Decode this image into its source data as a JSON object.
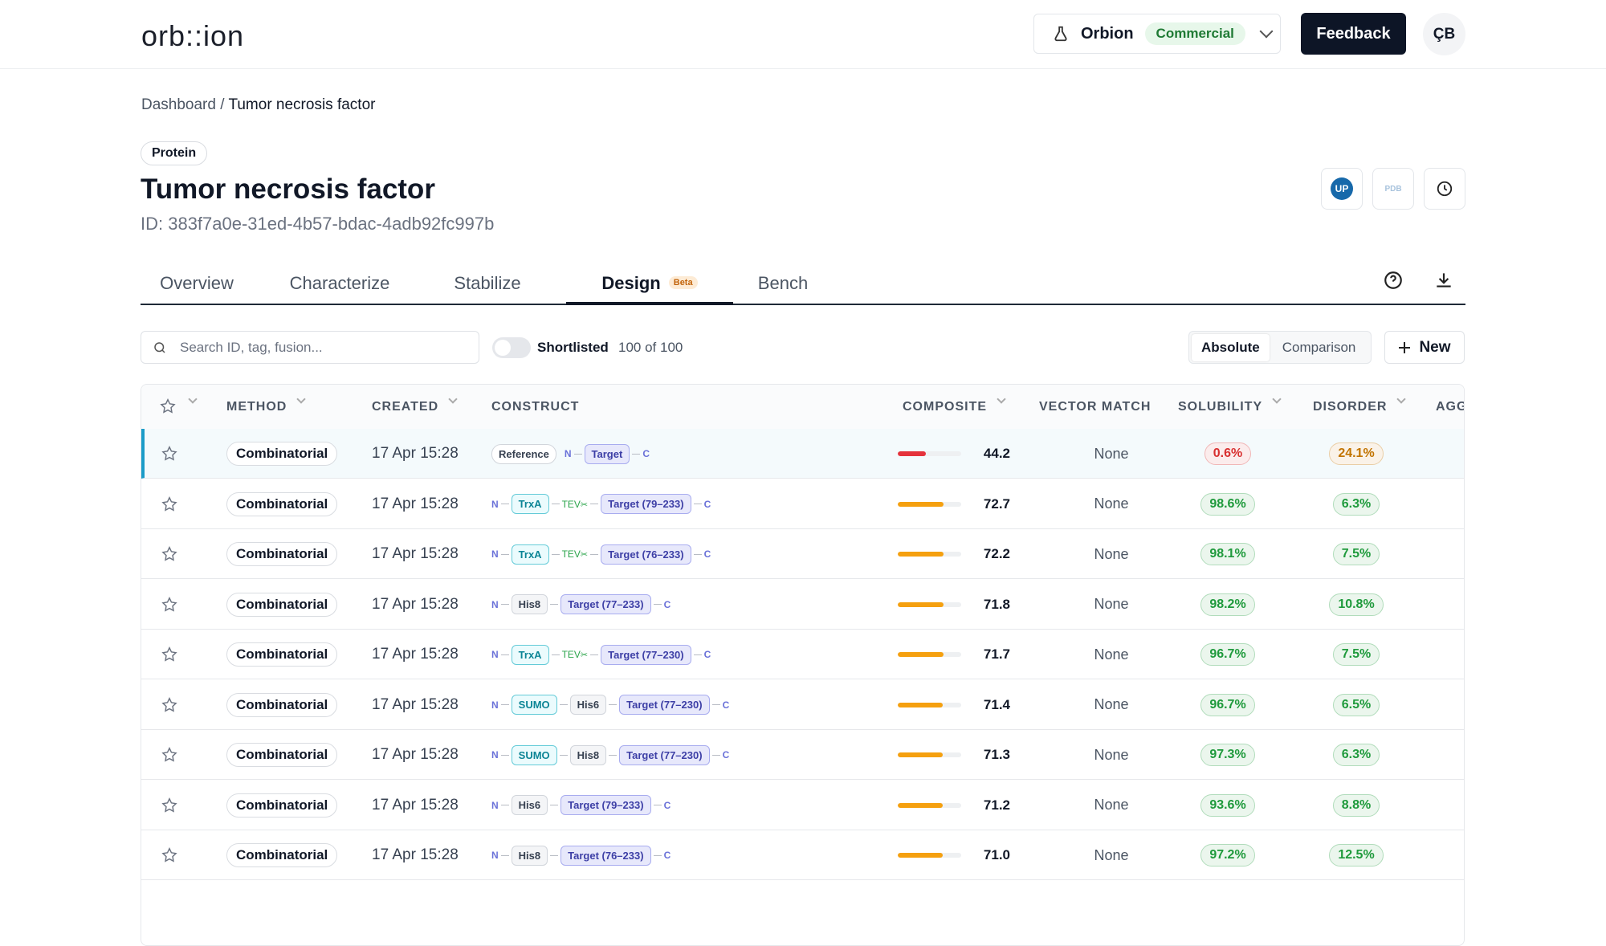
{
  "header": {
    "logo": "orb::ion",
    "workspace": "Orbion",
    "plan": "Commercial",
    "feedback": "Feedback",
    "avatar": "ÇB"
  },
  "breadcrumb": {
    "parent": "Dashboard",
    "separator": "/",
    "current": "Tumor necrosis factor"
  },
  "entity": {
    "badge": "Protein",
    "title": "Tumor necrosis factor",
    "id": "ID: 383f7a0e-31ed-4b57-bdac-4adb92fc997b",
    "uniprot_icon": "UP",
    "pdb_icon": "PDB"
  },
  "tabs": {
    "items": [
      "Overview",
      "Characterize",
      "Stabilize",
      "Design",
      "Bench"
    ],
    "active": 3,
    "badge": "Beta",
    "badge_tab": 3
  },
  "toolbar": {
    "search_placeholder": "Search ID, tag, fusion...",
    "toggle_label": "Shortlisted",
    "count": "100 of 100",
    "modes": [
      "Absolute",
      "Comparison"
    ],
    "active_mode": 0,
    "new_button": "New"
  },
  "table": {
    "columns": [
      "METHOD",
      "CREATED",
      "CONSTRUCT",
      "COMPOSITE",
      "VECTOR MATCH",
      "SOLUBILITY",
      "DISORDER",
      "AGG"
    ],
    "composite_lim": [
      0,
      100
    ],
    "rows": [
      {
        "method": "Combinatorial",
        "created": "17 Apr 15:28",
        "construct": [
          "Reference",
          "N",
          "Target",
          "C"
        ],
        "composite": 44.2,
        "composite_color": "#e5323b",
        "vector_match": "None",
        "solubility": "0.6%",
        "solubility_color": "#d83030",
        "disorder": "24.1%",
        "disorder_color": "#c27400"
      },
      {
        "method": "Combinatorial",
        "created": "17 Apr 15:28",
        "construct": [
          "N",
          "TrxA",
          "TEV",
          "Target (79–233)",
          "C"
        ],
        "composite": 72.7,
        "composite_color": "#f5a00f",
        "vector_match": "None",
        "solubility": "98.6%",
        "solubility_color": "#1f9a3c",
        "disorder": "6.3%",
        "disorder_color": "#1f9a3c"
      },
      {
        "method": "Combinatorial",
        "created": "17 Apr 15:28",
        "construct": [
          "N",
          "TrxA",
          "TEV",
          "Target (76–233)",
          "C"
        ],
        "composite": 72.2,
        "composite_color": "#f5a00f",
        "vector_match": "None",
        "solubility": "98.1%",
        "solubility_color": "#1f9a3c",
        "disorder": "7.5%",
        "disorder_color": "#1f9a3c"
      },
      {
        "method": "Combinatorial",
        "created": "17 Apr 15:28",
        "construct": [
          "N",
          "His8",
          "Target (77–233)",
          "C"
        ],
        "composite": 71.8,
        "composite_color": "#f5a00f",
        "vector_match": "None",
        "solubility": "98.2%",
        "solubility_color": "#1f9a3c",
        "disorder": "10.8%",
        "disorder_color": "#1f9a3c"
      },
      {
        "method": "Combinatorial",
        "created": "17 Apr 15:28",
        "construct": [
          "N",
          "TrxA",
          "TEV",
          "Target (77–230)",
          "C"
        ],
        "composite": 71.7,
        "composite_color": "#f5a00f",
        "vector_match": "None",
        "solubility": "96.7%",
        "solubility_color": "#1f9a3c",
        "disorder": "7.5%",
        "disorder_color": "#1f9a3c"
      },
      {
        "method": "Combinatorial",
        "created": "17 Apr 15:28",
        "construct": [
          "N",
          "SUMO",
          "His6",
          "Target (77–230)",
          "C"
        ],
        "composite": 71.4,
        "composite_color": "#f5a00f",
        "vector_match": "None",
        "solubility": "96.7%",
        "solubility_color": "#1f9a3c",
        "disorder": "6.5%",
        "disorder_color": "#1f9a3c"
      },
      {
        "method": "Combinatorial",
        "created": "17 Apr 15:28",
        "construct": [
          "N",
          "SUMO",
          "His8",
          "Target (77–230)",
          "C"
        ],
        "composite": 71.3,
        "composite_color": "#f5a00f",
        "vector_match": "None",
        "solubility": "97.3%",
        "solubility_color": "#1f9a3c",
        "disorder": "6.3%",
        "disorder_color": "#1f9a3c"
      },
      {
        "method": "Combinatorial",
        "created": "17 Apr 15:28",
        "construct": [
          "N",
          "His6",
          "Target (79–233)",
          "C"
        ],
        "composite": 71.2,
        "composite_color": "#f5a00f",
        "vector_match": "None",
        "solubility": "93.6%",
        "solubility_color": "#1f9a3c",
        "disorder": "8.8%",
        "disorder_color": "#1f9a3c"
      },
      {
        "method": "Combinatorial",
        "created": "17 Apr 15:28",
        "construct": [
          "N",
          "His8",
          "Target (76–233)",
          "C"
        ],
        "composite": 71,
        "composite_label": "71.0",
        "composite_color": "#f5a00f",
        "vector_match": "None",
        "solubility": "97.2%",
        "solubility_color": "#1f9a3c",
        "disorder": "12.5%",
        "disorder_color": "#1f9a3c"
      }
    ]
  }
}
